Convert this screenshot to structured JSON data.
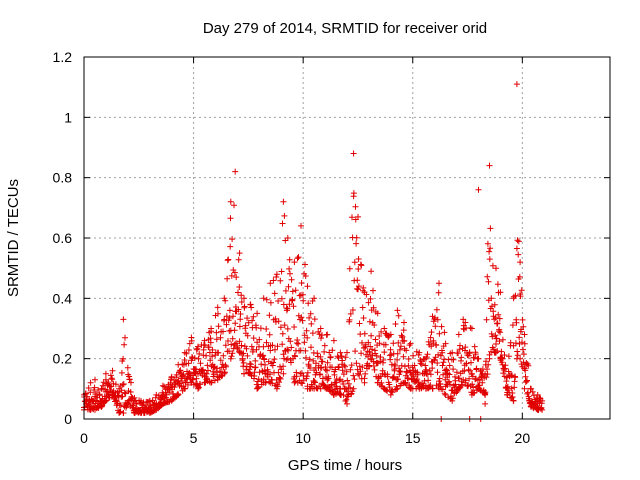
{
  "chart_data": {
    "type": "scatter",
    "title": "Day 279 of 2014, SRMTID for receiver orid",
    "xlabel": "GPS time / hours",
    "ylabel": "SRMTID / TECUs",
    "xlim": [
      0,
      24
    ],
    "ylim": [
      0,
      1.2
    ],
    "xticks": [
      "0",
      "5",
      "10",
      "15",
      "20"
    ],
    "yticks": [
      "0",
      "0.2",
      "0.4",
      "0.6",
      "0.8",
      "1",
      "1.2"
    ],
    "grid": true,
    "marker": "plus",
    "color": "#e00000",
    "series": [
      {
        "name": "SRMTID",
        "envelope": [
          [
            0.0,
            0.03,
            0.08
          ],
          [
            0.3,
            0.03,
            0.12
          ],
          [
            0.5,
            0.03,
            0.13
          ],
          [
            0.8,
            0.04,
            0.1
          ],
          [
            1.0,
            0.06,
            0.15
          ],
          [
            1.3,
            0.08,
            0.16
          ],
          [
            1.6,
            0.02,
            0.1
          ],
          [
            1.8,
            0.02,
            0.33
          ],
          [
            2.0,
            0.05,
            0.17
          ],
          [
            2.3,
            0.02,
            0.07
          ],
          [
            2.6,
            0.02,
            0.06
          ],
          [
            3.0,
            0.02,
            0.06
          ],
          [
            3.3,
            0.03,
            0.08
          ],
          [
            3.6,
            0.05,
            0.11
          ],
          [
            4.0,
            0.06,
            0.14
          ],
          [
            4.3,
            0.08,
            0.18
          ],
          [
            4.6,
            0.1,
            0.22
          ],
          [
            4.9,
            0.12,
            0.27
          ],
          [
            5.2,
            0.1,
            0.24
          ],
          [
            5.5,
            0.12,
            0.26
          ],
          [
            5.8,
            0.12,
            0.3
          ],
          [
            6.1,
            0.13,
            0.37
          ],
          [
            6.4,
            0.15,
            0.4
          ],
          [
            6.7,
            0.2,
            0.72
          ],
          [
            6.9,
            0.25,
            0.82
          ],
          [
            7.1,
            0.22,
            0.55
          ],
          [
            7.3,
            0.15,
            0.4
          ],
          [
            7.6,
            0.15,
            0.38
          ],
          [
            7.9,
            0.1,
            0.35
          ],
          [
            8.2,
            0.12,
            0.4
          ],
          [
            8.5,
            0.12,
            0.45
          ],
          [
            8.8,
            0.1,
            0.48
          ],
          [
            9.1,
            0.15,
            0.72
          ],
          [
            9.3,
            0.2,
            0.6
          ],
          [
            9.6,
            0.12,
            0.52
          ],
          [
            9.9,
            0.12,
            0.64
          ],
          [
            10.2,
            0.1,
            0.44
          ],
          [
            10.5,
            0.1,
            0.4
          ],
          [
            10.8,
            0.1,
            0.3
          ],
          [
            11.1,
            0.1,
            0.28
          ],
          [
            11.4,
            0.08,
            0.26
          ],
          [
            11.7,
            0.08,
            0.22
          ],
          [
            12.0,
            0.05,
            0.22
          ],
          [
            12.3,
            0.1,
            0.88
          ],
          [
            12.5,
            0.15,
            0.67
          ],
          [
            12.8,
            0.12,
            0.42
          ],
          [
            13.1,
            0.2,
            0.49
          ],
          [
            13.4,
            0.12,
            0.35
          ],
          [
            13.7,
            0.1,
            0.3
          ],
          [
            14.0,
            0.08,
            0.28
          ],
          [
            14.3,
            0.1,
            0.36
          ],
          [
            14.6,
            0.12,
            0.32
          ],
          [
            14.9,
            0.1,
            0.25
          ],
          [
            15.3,
            0.1,
            0.22
          ],
          [
            15.6,
            0.1,
            0.2
          ],
          [
            15.9,
            0.1,
            0.34
          ],
          [
            16.2,
            0.1,
            0.45
          ],
          [
            16.5,
            0.08,
            0.25
          ],
          [
            16.8,
            0.06,
            0.22
          ],
          [
            17.1,
            0.1,
            0.28
          ],
          [
            17.4,
            0.12,
            0.32
          ],
          [
            17.7,
            0.08,
            0.3
          ],
          [
            18.0,
            0.1,
            0.2
          ],
          [
            18.3,
            0.08,
            0.15
          ],
          [
            18.5,
            0.2,
            0.84
          ],
          [
            18.8,
            0.22,
            0.5
          ],
          [
            19.0,
            0.2,
            0.42
          ],
          [
            19.3,
            0.08,
            0.14
          ],
          [
            19.6,
            0.06,
            0.4
          ],
          [
            19.75,
            0.2,
            1.11
          ],
          [
            19.9,
            0.2,
            0.52
          ],
          [
            20.1,
            0.1,
            0.28
          ],
          [
            20.4,
            0.04,
            0.1
          ],
          [
            20.7,
            0.03,
            0.08
          ],
          [
            20.9,
            0.03,
            0.06
          ]
        ],
        "outliers": [
          {
            "x": 16.3,
            "y": 0.0
          },
          {
            "x": 17.6,
            "y": 0.0
          },
          {
            "x": 18.1,
            "y": 0.0
          },
          {
            "x": 18.3,
            "y": 0.05
          },
          {
            "x": 17.3,
            "y": 0.33
          },
          {
            "x": 18.0,
            "y": 0.76
          }
        ]
      }
    ]
  }
}
